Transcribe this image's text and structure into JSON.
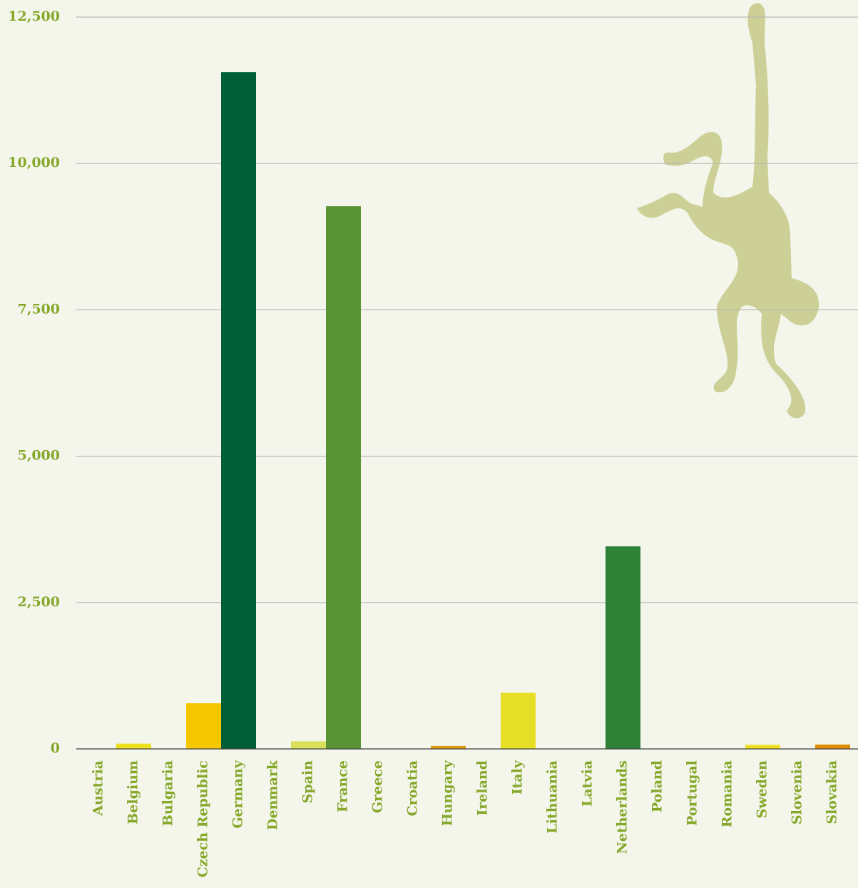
{
  "chart_data": {
    "type": "bar",
    "categories": [
      "Austria",
      "Belgium",
      "Bulgaria",
      "Czech Republic",
      "Germany",
      "Denmark",
      "Spain",
      "France",
      "Greece",
      "Croatia",
      "Hungary",
      "Ireland",
      "Italy",
      "Lithuania",
      "Latvia",
      "Netherlands",
      "Poland",
      "Portugal",
      "Romania",
      "Sweden",
      "Slovenia",
      "Slovakia"
    ],
    "values": [
      0,
      90,
      0,
      780,
      11560,
      0,
      130,
      9270,
      0,
      0,
      50,
      0,
      960,
      0,
      0,
      3460,
      0,
      0,
      0,
      70,
      0,
      75
    ],
    "colors": [
      "#e6df27",
      "#ece01f",
      "#e6df27",
      "#f5c700",
      "#005f36",
      "#e6df27",
      "#dbe05c",
      "#5a9336",
      "#e6df27",
      "#e6df27",
      "#e09a0f",
      "#e6df27",
      "#e6df27",
      "#e6df27",
      "#e6df27",
      "#2e8238",
      "#e6df27",
      "#e6df27",
      "#e6df27",
      "#f0e020",
      "#e6df27",
      "#e08c00"
    ],
    "ylim": [
      0,
      12500
    ],
    "yticks": [
      0,
      {
        "value": 2500,
        "label": "2,500"
      },
      {
        "value": 5000,
        "label": "5,000"
      },
      {
        "value": 7500,
        "label": "7,500"
      },
      {
        "value": 10000,
        "label": "10,000"
      },
      {
        "value": 12500,
        "label": "12,500"
      }
    ],
    "grid": true
  }
}
